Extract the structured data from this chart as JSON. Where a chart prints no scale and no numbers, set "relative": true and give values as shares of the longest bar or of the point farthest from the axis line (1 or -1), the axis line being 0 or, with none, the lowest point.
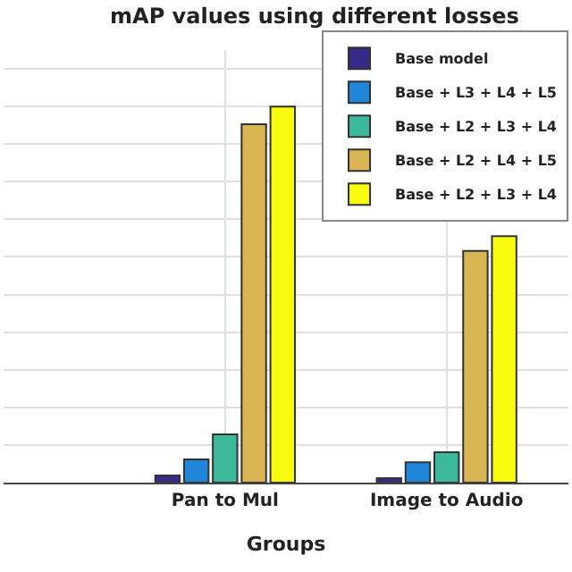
{
  "chart_data": {
    "type": "bar",
    "title": "mAP values using different losses",
    "xlabel": "Groups",
    "categories": [
      "Pan to Mul",
      "Image to Audio"
    ],
    "relative": true,
    "grid": true,
    "legend": "top right",
    "series": [
      {
        "name": "Base model",
        "color": "#352a87",
        "values": [
          0.019,
          0.012
        ]
      },
      {
        "name": "Base + L3 + L4 + L5",
        "color": "#1f86d9",
        "values": [
          0.062,
          0.054
        ]
      },
      {
        "name": "Base + L2 + L3 + L4",
        "color": "#3cb99a",
        "values": [
          0.128,
          0.081
        ]
      },
      {
        "name": "Base + L2 + L4 + L5",
        "color": "#d8b552",
        "values": [
          0.953,
          0.616
        ]
      },
      {
        "name": "Base + L2 + L3 + L4",
        "color": "#f9fb0e",
        "values": [
          1,
          0.655
        ]
      }
    ]
  }
}
